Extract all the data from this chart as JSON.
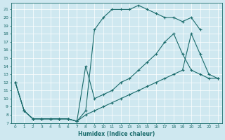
{
  "background_color": "#cfe8f0",
  "grid_color": "#ffffff",
  "line_color": "#1a6b6b",
  "xlabel": "Humidex (Indice chaleur)",
  "xlim": [
    -0.5,
    23.5
  ],
  "ylim": [
    7,
    21.8
  ],
  "xticks": [
    0,
    1,
    2,
    3,
    4,
    5,
    6,
    7,
    8,
    9,
    10,
    11,
    12,
    13,
    14,
    15,
    16,
    17,
    18,
    19,
    20,
    21,
    22,
    23
  ],
  "yticks": [
    7,
    8,
    9,
    10,
    11,
    12,
    13,
    14,
    15,
    16,
    17,
    18,
    19,
    20,
    21
  ],
  "curve_top_x": [
    0,
    1,
    2,
    3,
    4,
    5,
    6,
    7,
    8,
    9,
    10,
    11,
    12,
    13,
    14,
    15,
    16,
    17,
    18,
    19,
    20,
    21
  ],
  "curve_top_y": [
    12,
    8.5,
    7.5,
    7.5,
    7.5,
    7.5,
    7.5,
    7.2,
    8.5,
    18.5,
    20,
    21,
    21,
    21,
    21.5,
    21,
    20.5,
    20,
    20,
    19.5,
    20,
    18.5
  ],
  "curve_mid_x": [
    0,
    1,
    2,
    3,
    4,
    5,
    6,
    7,
    8,
    9,
    10,
    11,
    12,
    13,
    14,
    15,
    16,
    17,
    18,
    19,
    20,
    21,
    22,
    23
  ],
  "curve_mid_y": [
    12,
    8.5,
    7.5,
    7.5,
    7.5,
    7.5,
    7.5,
    7.2,
    14,
    10,
    10.5,
    11,
    12,
    12.5,
    13.5,
    14.5,
    15.5,
    17,
    18,
    15.5,
    13.5,
    13,
    12.5,
    12.5
  ],
  "curve_bot_x": [
    0,
    1,
    2,
    3,
    4,
    5,
    6,
    7,
    8,
    9,
    10,
    11,
    12,
    13,
    14,
    15,
    16,
    17,
    18,
    19,
    20,
    21,
    22,
    23
  ],
  "curve_bot_y": [
    12,
    8.5,
    7.5,
    7.5,
    7.5,
    7.5,
    7.5,
    7.2,
    8,
    8.5,
    9,
    9.5,
    10,
    10.5,
    11,
    11.5,
    12,
    12.5,
    13,
    13.5,
    18,
    15.5,
    13,
    12.5
  ]
}
